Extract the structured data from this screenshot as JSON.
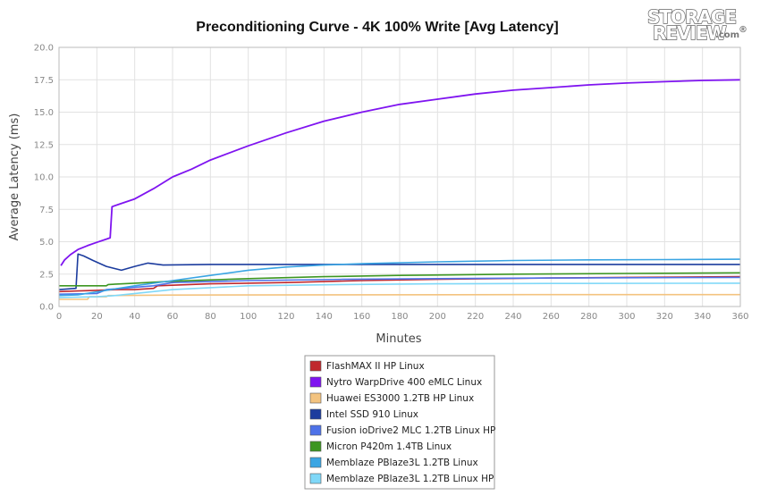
{
  "logo": {
    "line1": "STORAGE",
    "line2": "REVIEW",
    "suffix": ".com",
    "mark": "®"
  },
  "chart_data": {
    "type": "line",
    "title": "Preconditioning Curve - 4K 100% Write [Avg Latency]",
    "xlabel": "Minutes",
    "ylabel": "Average Latency (ms)",
    "xlim": [
      0,
      360
    ],
    "ylim": [
      0,
      20
    ],
    "x_ticks": [
      "0",
      "20",
      "40",
      "60",
      "80",
      "100",
      "120",
      "140",
      "160",
      "180",
      "200",
      "220",
      "240",
      "260",
      "280",
      "300",
      "320",
      "340",
      "360"
    ],
    "y_ticks": [
      "0.0",
      "2.5",
      "5.0",
      "7.5",
      "10.0",
      "12.5",
      "15.0",
      "17.5",
      "20.0"
    ],
    "grid": true,
    "legend_position": "bottom-center",
    "series": [
      {
        "name": "FlashMAX II HP Linux",
        "color": "#c0282d",
        "points": [
          [
            0,
            1.15
          ],
          [
            10,
            1.2
          ],
          [
            20,
            1.25
          ],
          [
            30,
            1.3
          ],
          [
            40,
            1.3
          ],
          [
            50,
            1.4
          ],
          [
            52,
            1.6
          ],
          [
            80,
            1.75
          ],
          [
            120,
            1.85
          ],
          [
            160,
            2.0
          ],
          [
            200,
            2.1
          ],
          [
            260,
            2.2
          ],
          [
            300,
            2.25
          ],
          [
            360,
            2.3
          ]
        ]
      },
      {
        "name": "Nytro WarpDrive 400 eMLC Linux",
        "color": "#7f14f0",
        "points": [
          [
            1,
            3.15
          ],
          [
            3,
            3.6
          ],
          [
            6,
            4.0
          ],
          [
            10,
            4.4
          ],
          [
            15,
            4.7
          ],
          [
            20,
            4.95
          ],
          [
            25,
            5.2
          ],
          [
            27,
            5.3
          ],
          [
            28,
            7.7
          ],
          [
            32,
            7.9
          ],
          [
            40,
            8.3
          ],
          [
            50,
            9.1
          ],
          [
            60,
            10.0
          ],
          [
            70,
            10.6
          ],
          [
            80,
            11.3
          ],
          [
            100,
            12.4
          ],
          [
            120,
            13.4
          ],
          [
            140,
            14.3
          ],
          [
            160,
            15.0
          ],
          [
            180,
            15.6
          ],
          [
            200,
            16.0
          ],
          [
            220,
            16.4
          ],
          [
            240,
            16.7
          ],
          [
            260,
            16.9
          ],
          [
            280,
            17.1
          ],
          [
            300,
            17.25
          ],
          [
            320,
            17.35
          ],
          [
            340,
            17.45
          ],
          [
            360,
            17.5
          ]
        ]
      },
      {
        "name": "Huawei ES3000 1.2TB HP Linux",
        "color": "#f3c37f",
        "points": [
          [
            0,
            0.55
          ],
          [
            15,
            0.55
          ],
          [
            16,
            0.75
          ],
          [
            25,
            0.75
          ],
          [
            26,
            0.85
          ],
          [
            60,
            0.88
          ],
          [
            150,
            0.9
          ],
          [
            250,
            0.92
          ],
          [
            360,
            0.92
          ]
        ]
      },
      {
        "name": "Intel SSD 910 Linux",
        "color": "#1c3c9e",
        "points": [
          [
            0,
            1.3
          ],
          [
            9,
            1.4
          ],
          [
            10,
            4.05
          ],
          [
            13,
            3.9
          ],
          [
            18,
            3.55
          ],
          [
            25,
            3.1
          ],
          [
            33,
            2.8
          ],
          [
            40,
            3.1
          ],
          [
            47,
            3.35
          ],
          [
            55,
            3.2
          ],
          [
            80,
            3.25
          ],
          [
            120,
            3.25
          ],
          [
            200,
            3.25
          ],
          [
            280,
            3.25
          ],
          [
            360,
            3.25
          ]
        ]
      },
      {
        "name": "Fusion ioDrive2 MLC 1.2TB Linux HP",
        "color": "#4e72e8",
        "points": [
          [
            0,
            0.95
          ],
          [
            20,
            1.0
          ],
          [
            25,
            1.3
          ],
          [
            50,
            1.6
          ],
          [
            60,
            1.85
          ],
          [
            100,
            2.0
          ],
          [
            150,
            2.1
          ],
          [
            200,
            2.15
          ],
          [
            260,
            2.2
          ],
          [
            360,
            2.25
          ]
        ]
      },
      {
        "name": "Micron P420m 1.4TB Linux",
        "color": "#3d9622",
        "points": [
          [
            0,
            1.6
          ],
          [
            25,
            1.6
          ],
          [
            26,
            1.7
          ],
          [
            40,
            1.8
          ],
          [
            60,
            1.95
          ],
          [
            100,
            2.15
          ],
          [
            140,
            2.3
          ],
          [
            180,
            2.4
          ],
          [
            240,
            2.5
          ],
          [
            300,
            2.55
          ],
          [
            360,
            2.6
          ]
        ]
      },
      {
        "name": "Memblaze PBlaze3L 1.2TB Linux",
        "color": "#3aa5e3",
        "points": [
          [
            0,
            0.85
          ],
          [
            10,
            0.9
          ],
          [
            25,
            1.25
          ],
          [
            40,
            1.6
          ],
          [
            60,
            2.0
          ],
          [
            80,
            2.4
          ],
          [
            100,
            2.8
          ],
          [
            120,
            3.05
          ],
          [
            140,
            3.2
          ],
          [
            160,
            3.3
          ],
          [
            200,
            3.45
          ],
          [
            240,
            3.55
          ],
          [
            280,
            3.6
          ],
          [
            320,
            3.62
          ],
          [
            360,
            3.65
          ]
        ]
      },
      {
        "name": "Memblaze PBlaze3L 1.2TB Linux HP",
        "color": "#7fd8f8",
        "points": [
          [
            0,
            0.7
          ],
          [
            20,
            0.75
          ],
          [
            30,
            0.85
          ],
          [
            60,
            1.3
          ],
          [
            100,
            1.6
          ],
          [
            150,
            1.7
          ],
          [
            200,
            1.75
          ],
          [
            260,
            1.78
          ],
          [
            360,
            1.8
          ]
        ]
      }
    ]
  }
}
